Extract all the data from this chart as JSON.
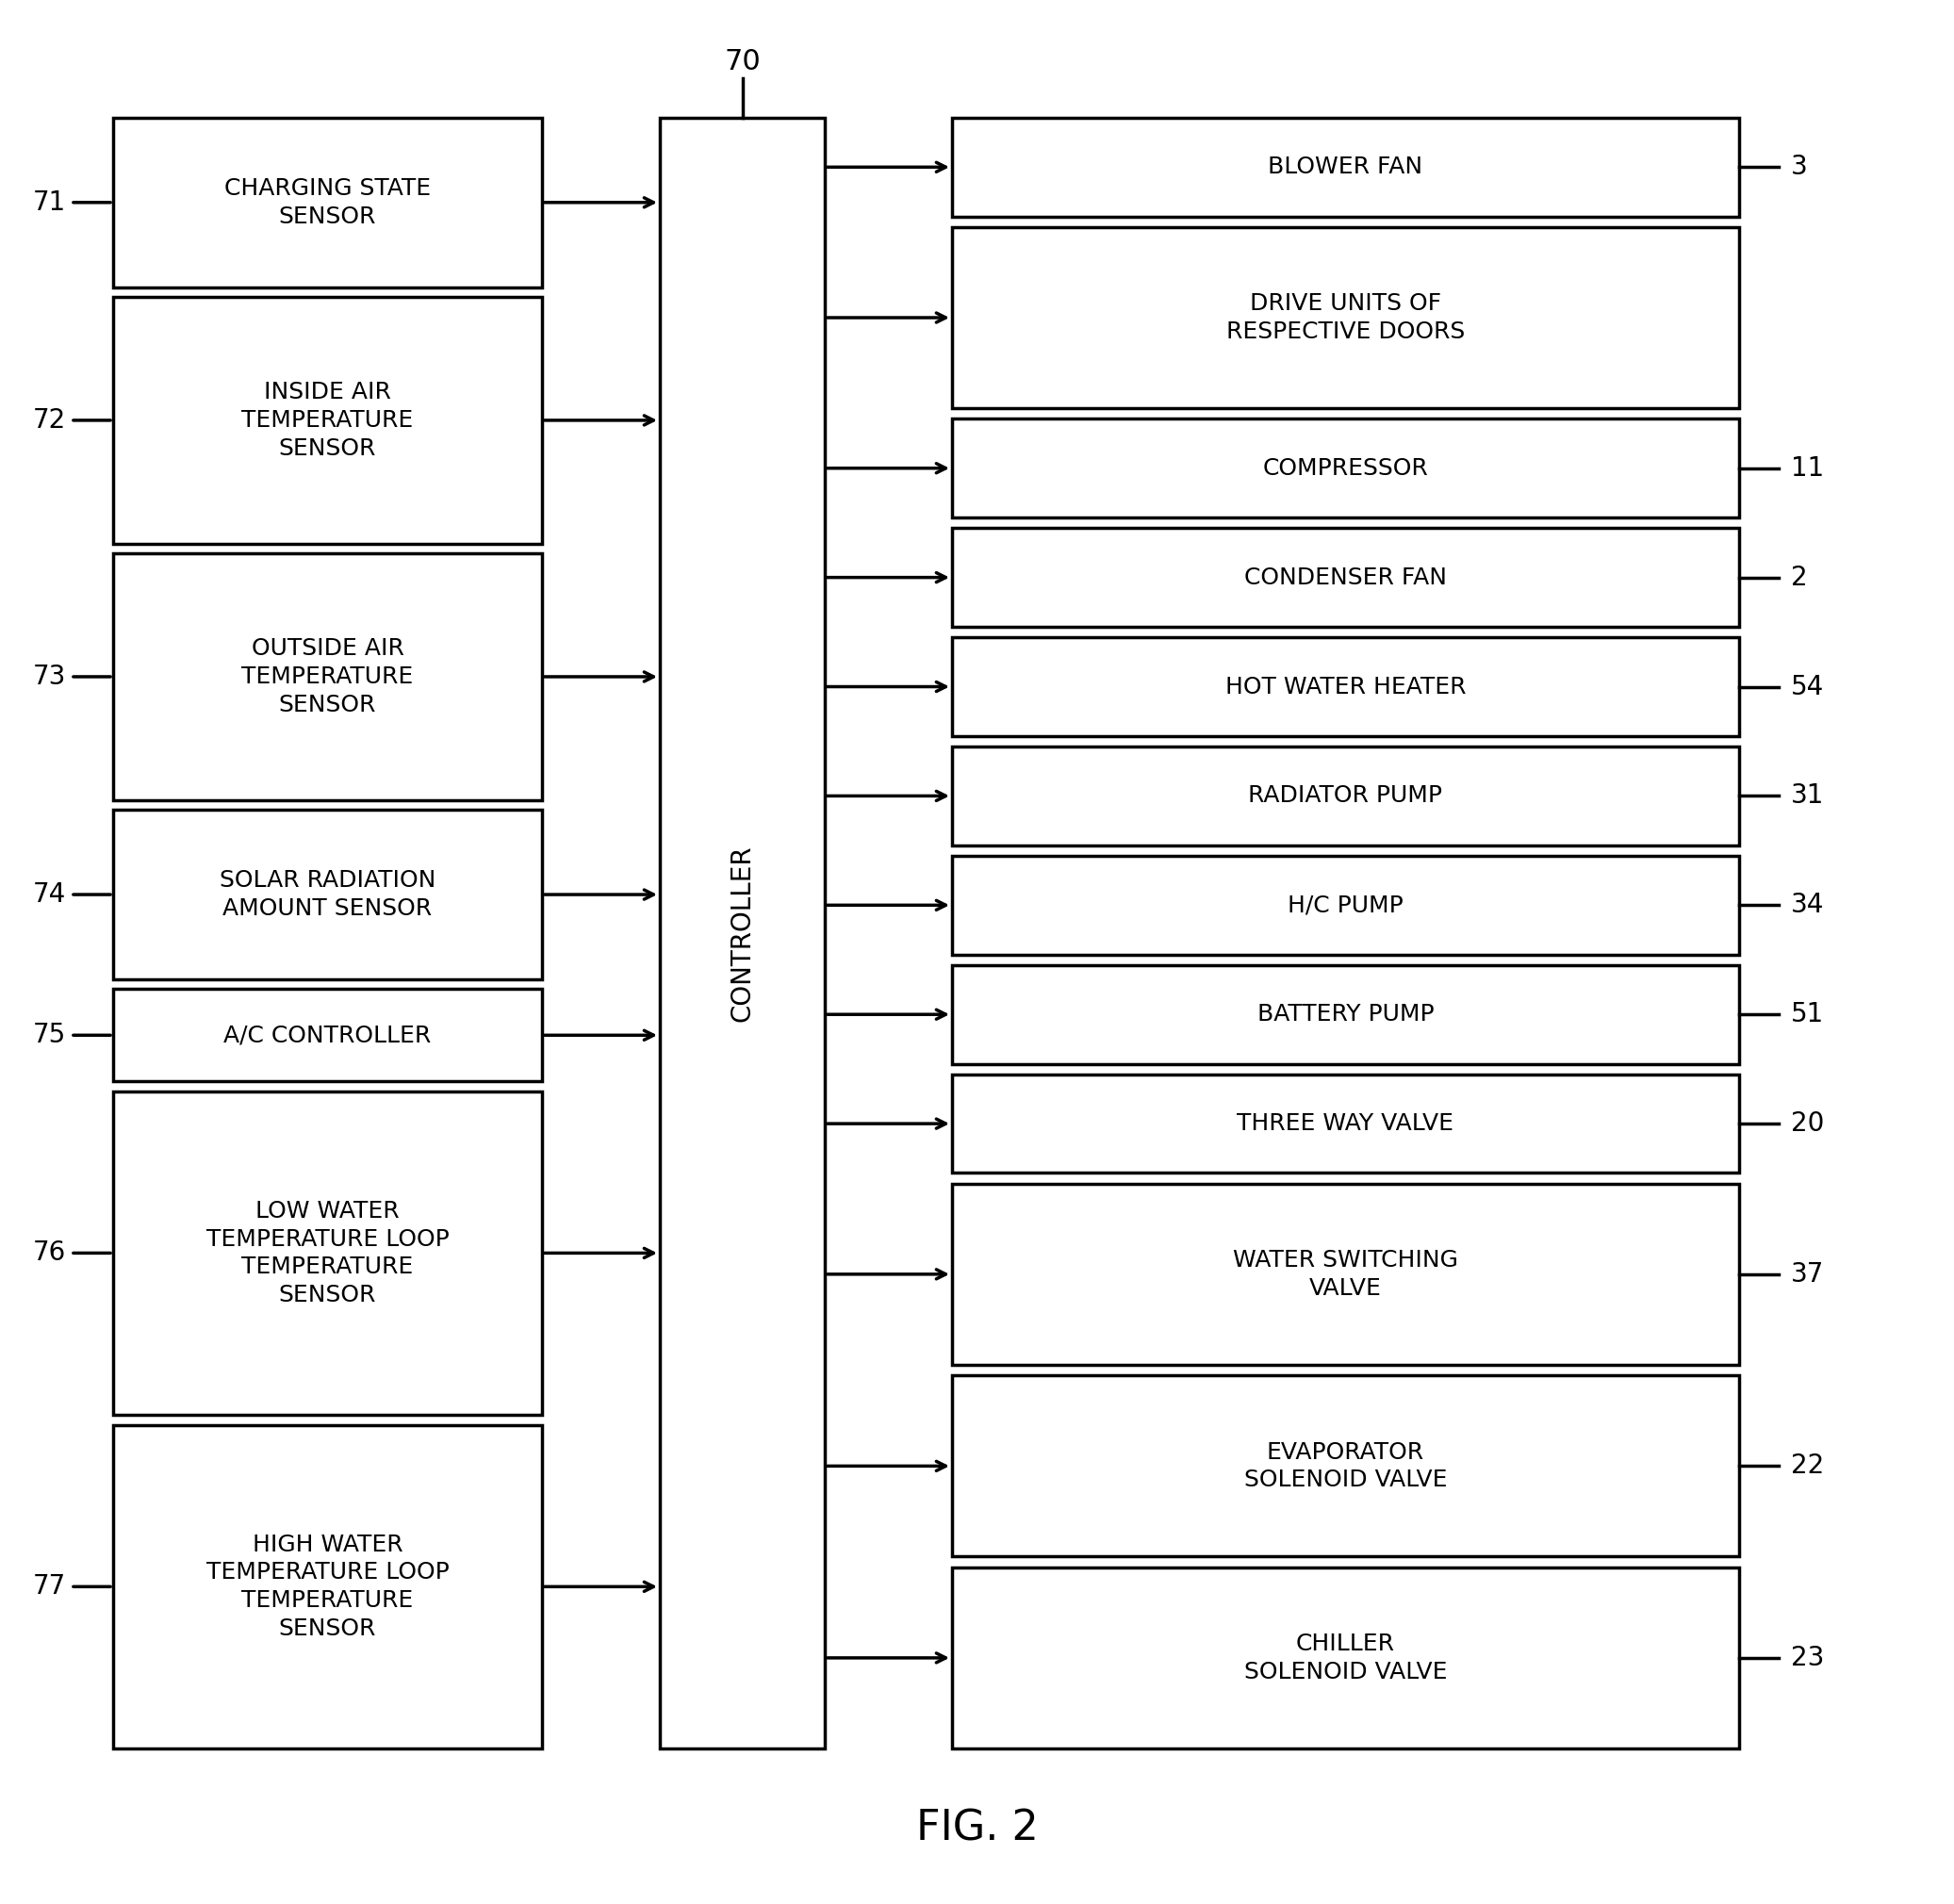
{
  "title": "FIG. 2",
  "controller_label": "CONTROLLER",
  "controller_number": "70",
  "left_boxes": [
    {
      "label": "CHARGING STATE\nSENSOR",
      "number": "71",
      "nlines": 2
    },
    {
      "label": "INSIDE AIR\nTEMPERATURE\nSENSOR",
      "number": "72",
      "nlines": 3
    },
    {
      "label": "OUTSIDE AIR\nTEMPERATURE\nSENSOR",
      "number": "73",
      "nlines": 3
    },
    {
      "label": "SOLAR RADIATION\nAMOUNT SENSOR",
      "number": "74",
      "nlines": 2
    },
    {
      "label": "A/C CONTROLLER",
      "number": "75",
      "nlines": 1
    },
    {
      "label": "LOW WATER\nTEMPERATURE LOOP\nTEMPERATURE\nSENSOR",
      "number": "76",
      "nlines": 4
    },
    {
      "label": "HIGH WATER\nTEMPERATURE LOOP\nTEMPERATURE\nSENSOR",
      "number": "77",
      "nlines": 4
    }
  ],
  "right_boxes": [
    {
      "label": "BLOWER FAN",
      "number": "3",
      "nlines": 1
    },
    {
      "label": "DRIVE UNITS OF\nRESPECTIVE DOORS",
      "number": "",
      "nlines": 2
    },
    {
      "label": "COMPRESSOR",
      "number": "11",
      "nlines": 1
    },
    {
      "label": "CONDENSER FAN",
      "number": "2",
      "nlines": 1
    },
    {
      "label": "HOT WATER HEATER",
      "number": "54",
      "nlines": 1
    },
    {
      "label": "RADIATOR PUMP",
      "number": "31",
      "nlines": 1
    },
    {
      "label": "H/C PUMP",
      "number": "34",
      "nlines": 1
    },
    {
      "label": "BATTERY PUMP",
      "number": "51",
      "nlines": 1
    },
    {
      "label": "THREE WAY VALVE",
      "number": "20",
      "nlines": 1
    },
    {
      "label": "WATER SWITCHING\nVALVE",
      "number": "37",
      "nlines": 2
    },
    {
      "label": "EVAPORATOR\nSOLENOID VALVE",
      "number": "22",
      "nlines": 2
    },
    {
      "label": "CHILLER\nSOLENOID VALVE",
      "number": "23",
      "nlines": 2
    }
  ],
  "bg_color": "#ffffff",
  "box_edge_color": "#000000",
  "text_color": "#000000",
  "arrow_color": "#000000",
  "lw": 2.5,
  "font_size": 18,
  "title_font_size": 32,
  "number_font_size": 20
}
